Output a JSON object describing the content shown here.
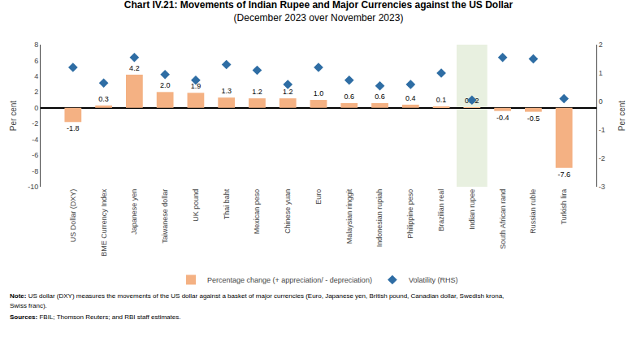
{
  "chart_data": {
    "type": "bar",
    "title": "Chart IV.21: Movements of Indian Rupee and Major Currencies against the US Dollar",
    "subtitle": "(December 2023 over November 2023)",
    "categories": [
      "US Dollar (DXY)",
      "BME Currency Index",
      "Japanese yen",
      "Taiwanese dollar",
      "UK pound",
      "Thai baht",
      "Mexican peso",
      "Chinese yuan",
      "Euro",
      "Malaysian ringgit",
      "Indonesian rupiah",
      "Philippine peso",
      "Brazilian real",
      "Indian rupee",
      "South African rand",
      "Russian ruble",
      "Turkish lira"
    ],
    "series": [
      {
        "name": "Percentage change (+ appreciation/ - depreciation)",
        "type": "bar",
        "color": "#f4b183",
        "values": [
          -1.8,
          0.3,
          4.2,
          2.0,
          1.9,
          1.3,
          1.2,
          1.2,
          1.0,
          0.6,
          0.6,
          0.4,
          0.1,
          0.02,
          -0.4,
          -0.5,
          -7.6
        ],
        "value_labels": [
          "-1.8",
          "0.3",
          "4.2",
          "2.0",
          "1.9",
          "1.3",
          "1.2",
          "1.2",
          "1.0",
          "0.6",
          "0.6",
          "0.4",
          "0.1",
          "0.02",
          "-0.4",
          "-0.5",
          "-7.6"
        ],
        "data_labels": true
      },
      {
        "name": "Volatility (RHS)",
        "type": "scatter",
        "marker": "diamond",
        "color": "#2e6da4",
        "axis": "y2",
        "values": [
          1.2,
          0.65,
          1.55,
          0.95,
          0.75,
          1.3,
          1.1,
          0.6,
          1.2,
          0.75,
          0.55,
          0.6,
          1.0,
          0.05,
          1.55,
          1.5,
          0.1
        ]
      }
    ],
    "ylabel": "Per cent",
    "y2label": "Per cent",
    "ylim": [
      -10,
      8
    ],
    "yticks": [
      -10,
      -8,
      -6,
      -4,
      -2,
      0,
      2,
      4,
      6,
      8
    ],
    "y2lim": [
      -3,
      2
    ],
    "y2ticks": [
      -3,
      -2,
      -1,
      0,
      1,
      2
    ],
    "highlight": {
      "category": "Indian rupee",
      "color": "#e8f0e0"
    },
    "grid": false,
    "legend": "bottom",
    "annotations": [
      "Note: US dollar (DXY) measures the movements of the US dollar against a basket of major currencies (Euro, Japanese yen, British pound, Canadian dollar, Swedish krona,",
      "Swiss franc).",
      "Sources: FBIL; Thomson Reuters; and RBI staff estimates."
    ]
  }
}
